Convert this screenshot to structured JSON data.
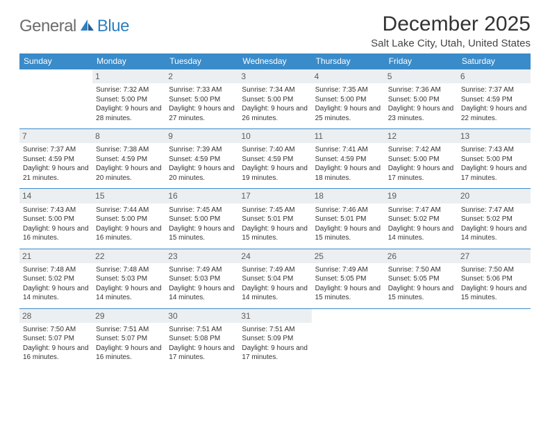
{
  "logo": {
    "text1": "General",
    "text2": "Blue"
  },
  "title": "December 2025",
  "location": "Salt Lake City, Utah, United States",
  "colors": {
    "header_bg": "#3a8bc9",
    "header_text": "#ffffff",
    "day_bg": "#eceff1",
    "border": "#3a8bc9",
    "logo_gray": "#6c6c6c",
    "logo_blue": "#2f7fbf"
  },
  "weekdays": [
    "Sunday",
    "Monday",
    "Tuesday",
    "Wednesday",
    "Thursday",
    "Friday",
    "Saturday"
  ],
  "start_offset": 1,
  "days": [
    {
      "n": 1,
      "sunrise": "7:32 AM",
      "sunset": "5:00 PM",
      "dl": "9 hours and 28 minutes."
    },
    {
      "n": 2,
      "sunrise": "7:33 AM",
      "sunset": "5:00 PM",
      "dl": "9 hours and 27 minutes."
    },
    {
      "n": 3,
      "sunrise": "7:34 AM",
      "sunset": "5:00 PM",
      "dl": "9 hours and 26 minutes."
    },
    {
      "n": 4,
      "sunrise": "7:35 AM",
      "sunset": "5:00 PM",
      "dl": "9 hours and 25 minutes."
    },
    {
      "n": 5,
      "sunrise": "7:36 AM",
      "sunset": "5:00 PM",
      "dl": "9 hours and 23 minutes."
    },
    {
      "n": 6,
      "sunrise": "7:37 AM",
      "sunset": "4:59 PM",
      "dl": "9 hours and 22 minutes."
    },
    {
      "n": 7,
      "sunrise": "7:37 AM",
      "sunset": "4:59 PM",
      "dl": "9 hours and 21 minutes."
    },
    {
      "n": 8,
      "sunrise": "7:38 AM",
      "sunset": "4:59 PM",
      "dl": "9 hours and 20 minutes."
    },
    {
      "n": 9,
      "sunrise": "7:39 AM",
      "sunset": "4:59 PM",
      "dl": "9 hours and 20 minutes."
    },
    {
      "n": 10,
      "sunrise": "7:40 AM",
      "sunset": "4:59 PM",
      "dl": "9 hours and 19 minutes."
    },
    {
      "n": 11,
      "sunrise": "7:41 AM",
      "sunset": "4:59 PM",
      "dl": "9 hours and 18 minutes."
    },
    {
      "n": 12,
      "sunrise": "7:42 AM",
      "sunset": "5:00 PM",
      "dl": "9 hours and 17 minutes."
    },
    {
      "n": 13,
      "sunrise": "7:43 AM",
      "sunset": "5:00 PM",
      "dl": "9 hours and 17 minutes."
    },
    {
      "n": 14,
      "sunrise": "7:43 AM",
      "sunset": "5:00 PM",
      "dl": "9 hours and 16 minutes."
    },
    {
      "n": 15,
      "sunrise": "7:44 AM",
      "sunset": "5:00 PM",
      "dl": "9 hours and 16 minutes."
    },
    {
      "n": 16,
      "sunrise": "7:45 AM",
      "sunset": "5:00 PM",
      "dl": "9 hours and 15 minutes."
    },
    {
      "n": 17,
      "sunrise": "7:45 AM",
      "sunset": "5:01 PM",
      "dl": "9 hours and 15 minutes."
    },
    {
      "n": 18,
      "sunrise": "7:46 AM",
      "sunset": "5:01 PM",
      "dl": "9 hours and 15 minutes."
    },
    {
      "n": 19,
      "sunrise": "7:47 AM",
      "sunset": "5:02 PM",
      "dl": "9 hours and 14 minutes."
    },
    {
      "n": 20,
      "sunrise": "7:47 AM",
      "sunset": "5:02 PM",
      "dl": "9 hours and 14 minutes."
    },
    {
      "n": 21,
      "sunrise": "7:48 AM",
      "sunset": "5:02 PM",
      "dl": "9 hours and 14 minutes."
    },
    {
      "n": 22,
      "sunrise": "7:48 AM",
      "sunset": "5:03 PM",
      "dl": "9 hours and 14 minutes."
    },
    {
      "n": 23,
      "sunrise": "7:49 AM",
      "sunset": "5:03 PM",
      "dl": "9 hours and 14 minutes."
    },
    {
      "n": 24,
      "sunrise": "7:49 AM",
      "sunset": "5:04 PM",
      "dl": "9 hours and 14 minutes."
    },
    {
      "n": 25,
      "sunrise": "7:49 AM",
      "sunset": "5:05 PM",
      "dl": "9 hours and 15 minutes."
    },
    {
      "n": 26,
      "sunrise": "7:50 AM",
      "sunset": "5:05 PM",
      "dl": "9 hours and 15 minutes."
    },
    {
      "n": 27,
      "sunrise": "7:50 AM",
      "sunset": "5:06 PM",
      "dl": "9 hours and 15 minutes."
    },
    {
      "n": 28,
      "sunrise": "7:50 AM",
      "sunset": "5:07 PM",
      "dl": "9 hours and 16 minutes."
    },
    {
      "n": 29,
      "sunrise": "7:51 AM",
      "sunset": "5:07 PM",
      "dl": "9 hours and 16 minutes."
    },
    {
      "n": 30,
      "sunrise": "7:51 AM",
      "sunset": "5:08 PM",
      "dl": "9 hours and 17 minutes."
    },
    {
      "n": 31,
      "sunrise": "7:51 AM",
      "sunset": "5:09 PM",
      "dl": "9 hours and 17 minutes."
    }
  ],
  "labels": {
    "sunrise": "Sunrise: ",
    "sunset": "Sunset: ",
    "daylight": "Daylight: "
  }
}
